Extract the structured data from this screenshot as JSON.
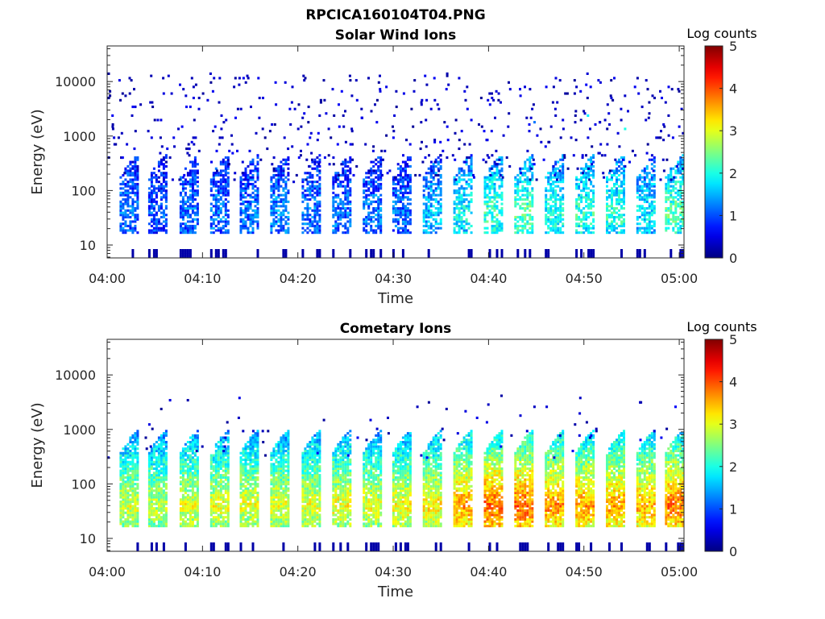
{
  "figure": {
    "title": "RPCICA160104T04.PNG"
  },
  "colorbar": {
    "label": "Log counts",
    "range": [
      0,
      5
    ],
    "ticks": [
      "0",
      "1",
      "2",
      "3",
      "4",
      "5"
    ]
  },
  "chart_data": [
    {
      "type": "heatmap",
      "title": "Solar Wind Ions",
      "xlabel": "Time",
      "ylabel": "Energy (eV)",
      "x_ticks": [
        "04:00",
        "04:10",
        "04:20",
        "04:30",
        "04:40",
        "04:50",
        "05:00"
      ],
      "x_range_minutes": [
        0,
        60.5
      ],
      "y_ticks": [
        "10",
        "100",
        "1000",
        "10000"
      ],
      "y_scale": "log",
      "ylim": [
        5.8,
        45000
      ],
      "value_label": "Log counts",
      "value_range": [
        0,
        5
      ],
      "sweep_times_minutes": [
        2.2,
        5.2,
        8.5,
        11.7,
        14.8,
        18.0,
        21.3,
        24.5,
        27.7,
        30.8,
        34.0,
        37.2,
        40.4,
        43.6,
        46.8,
        50.0,
        53.2,
        56.4,
        59.4
      ],
      "sweep_peak_log_counts": [
        1.2,
        1.0,
        1.2,
        1.2,
        1.2,
        1.3,
        1.2,
        1.2,
        1.2,
        1.2,
        1.6,
        1.9,
        2.2,
        2.3,
        2.0,
        2.1,
        2.1,
        1.8,
        2.3
      ],
      "sweep_energy_range_eV": [
        20,
        450
      ]
    },
    {
      "type": "heatmap",
      "title": "Cometary Ions",
      "xlabel": "Time",
      "ylabel": "Energy (eV)",
      "x_ticks": [
        "04:00",
        "04:10",
        "04:20",
        "04:30",
        "04:40",
        "04:50",
        "05:00"
      ],
      "x_range_minutes": [
        0,
        60.5
      ],
      "y_ticks": [
        "10",
        "100",
        "1000",
        "10000"
      ],
      "y_scale": "log",
      "ylim": [
        5.8,
        45000
      ],
      "value_label": "Log counts",
      "value_range": [
        0,
        5
      ],
      "sweep_times_minutes": [
        2.2,
        5.2,
        8.5,
        11.7,
        14.8,
        18.0,
        21.3,
        24.5,
        27.7,
        30.8,
        34.0,
        37.2,
        40.4,
        43.6,
        46.8,
        50.0,
        53.2,
        56.4,
        59.4
      ],
      "sweep_peak_log_counts": [
        2.9,
        2.8,
        3.0,
        3.0,
        3.0,
        3.0,
        3.0,
        3.1,
        3.0,
        3.1,
        3.2,
        3.6,
        3.9,
        3.9,
        3.7,
        3.6,
        3.6,
        3.5,
        3.8
      ],
      "sweep_energy_range_eV": [
        20,
        1000
      ]
    }
  ]
}
